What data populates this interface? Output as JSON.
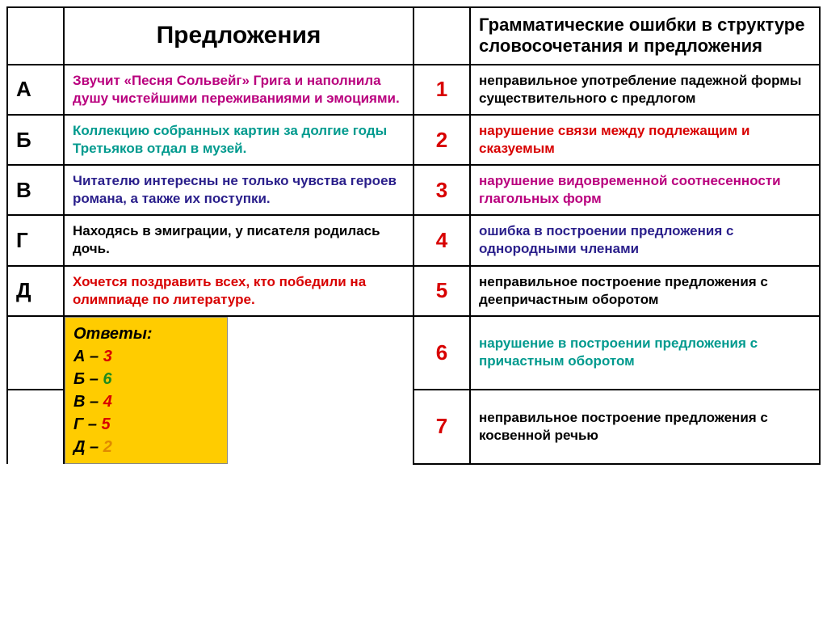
{
  "header": {
    "left": "Предложения",
    "right": "Грамматические ошибки в структуре словосочетания и предложения"
  },
  "colors": {
    "magenta": "#b9007e",
    "teal": "#009a8e",
    "darkblue": "#2a1f8b",
    "black": "#000000",
    "red": "#d80000",
    "green": "#1f8a1f",
    "orange": "#e08a00",
    "answers_bg": "#ffcc00"
  },
  "rows": [
    {
      "letter": "А",
      "sentence": "Звучит «Песня Сольвейг» Грига и наполнила душу чистейшими переживаниями и эмоциями.",
      "sentence_color": "#b9007e",
      "num": "1",
      "num_color": "#d80000",
      "error": "неправильное употребление падежной формы существительного с предлогом",
      "error_color": "#000000"
    },
    {
      "letter": "Б",
      "sentence": "Коллекцию собранных картин за долгие годы Третьяков отдал в музей.",
      "sentence_color": "#009a8e",
      "num": "2",
      "num_color": "#d80000",
      "error": "нарушение связи между подлежащим и сказуемым",
      "error_color": "#d80000"
    },
    {
      "letter": "В",
      "sentence": "Читателю интересны не только чувства героев романа, а также их поступки.",
      "sentence_color": "#2a1f8b",
      "num": "3",
      "num_color": "#d80000",
      "error": "нарушение видовременной соотнесенности глагольных форм",
      "error_color": "#b9007e"
    },
    {
      "letter": "Г",
      "sentence": "Находясь в эмиграции, у писателя родилась дочь.",
      "sentence_color": "#000000",
      "num": "4",
      "num_color": "#d80000",
      "error": "ошибка в построении предложения с однородными членами",
      "error_color": "#2a1f8b"
    },
    {
      "letter": "Д",
      "sentence": "Хочется поздравить всех, кто победили на олимпиаде по литературе.",
      "sentence_color": "#d80000",
      "num": "5",
      "num_color": "#d80000",
      "error": "неправильное построение предложения с деепричастным оборотом",
      "error_color": "#000000"
    }
  ],
  "row6": {
    "num": "6",
    "num_color": "#d80000",
    "error": "нарушение в построении предложения с причастным оборотом",
    "error_color": "#009a8e"
  },
  "row7": {
    "num": "7",
    "num_color": "#d80000",
    "error": "неправильное построение предложения с косвенной речью",
    "error_color": "#000000"
  },
  "answers": {
    "title": "Ответы:",
    "items": [
      {
        "k": "А",
        "v": "3",
        "vc": "#d80000"
      },
      {
        "k": "Б",
        "v": "6",
        "vc": "#1f8a1f"
      },
      {
        "k": "В",
        "v": "4",
        "vc": "#d80000"
      },
      {
        "k": "Г",
        "v": "5",
        "vc": "#d80000"
      },
      {
        "k": "Д",
        "v": "2",
        "vc": "#e08a00"
      }
    ]
  }
}
